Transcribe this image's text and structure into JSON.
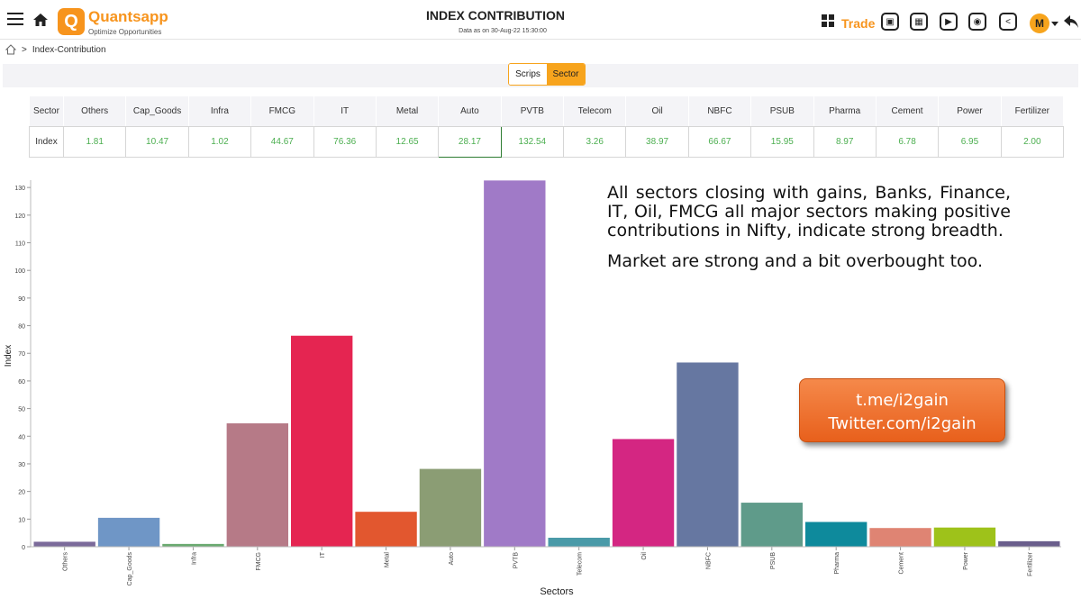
{
  "header": {
    "brand": "Quantsapp",
    "brand_tagline": "Optimize Opportunities",
    "title": "INDEX CONTRIBUTION",
    "subtitle": "Data as on 30-Aug-22 15:30:00",
    "trade_label": "Trade",
    "avatar_letter": "M",
    "logo_letter": "Q"
  },
  "breadcrumb": {
    "current": "Index-Contribution"
  },
  "toggle": {
    "left": "Scrips",
    "right": "Sector",
    "active": "Sector"
  },
  "table": {
    "row_labels": [
      "Sector",
      "Index"
    ],
    "columns": [
      "Others",
      "Cap_Goods",
      "Infra",
      "FMCG",
      "IT",
      "Metal",
      "Auto",
      "PVTB",
      "Telecom",
      "Oil",
      "NBFC",
      "PSUB",
      "Pharma",
      "Cement",
      "Power",
      "Fertilizer"
    ],
    "values": [
      "1.81",
      "10.47",
      "1.02",
      "44.67",
      "76.36",
      "12.65",
      "28.17",
      "132.54",
      "3.26",
      "38.97",
      "66.67",
      "15.95",
      "8.97",
      "6.78",
      "6.95",
      "2.00"
    ]
  },
  "annotation": {
    "paragraph1": "All sectors closing with gains, Banks, Finance, IT, Oil, FMCG all major sectors making positive contributions in Nifty, indicate strong breadth.",
    "paragraph2": "Market are strong and a bit overbought too.",
    "promo_line1": "t.me/i2gain",
    "promo_line2": "Twitter.com/i2gain"
  },
  "chart_data": {
    "type": "bar",
    "categories": [
      "Others",
      "Cap_Goods",
      "Infra",
      "FMCG",
      "IT",
      "Metal",
      "Auto",
      "PVTB",
      "Telecom",
      "Oil",
      "NBFC",
      "PSUB",
      "Pharma",
      "Cement",
      "Power",
      "Fertilizer"
    ],
    "values": [
      1.81,
      10.47,
      1.02,
      44.67,
      76.36,
      12.65,
      28.17,
      132.54,
      3.26,
      38.97,
      66.67,
      15.95,
      8.97,
      6.78,
      6.95,
      2.0
    ],
    "colors": [
      "#7b6a9a",
      "#6f96c6",
      "#6aaa70",
      "#b67a87",
      "#e52551",
      "#e2572f",
      "#8b9d74",
      "#a07ac7",
      "#4a9aa8",
      "#d42682",
      "#6677a1",
      "#5f9b8a",
      "#0e8a9c",
      "#df8473",
      "#9ec21a",
      "#6a5e8c"
    ],
    "xlabel": "Sectors",
    "ylabel": "Index",
    "ylim": [
      0,
      135
    ],
    "yticks": [
      0,
      10,
      20,
      30,
      40,
      50,
      60,
      70,
      80,
      90,
      100,
      110,
      120,
      130
    ],
    "grid": false
  }
}
